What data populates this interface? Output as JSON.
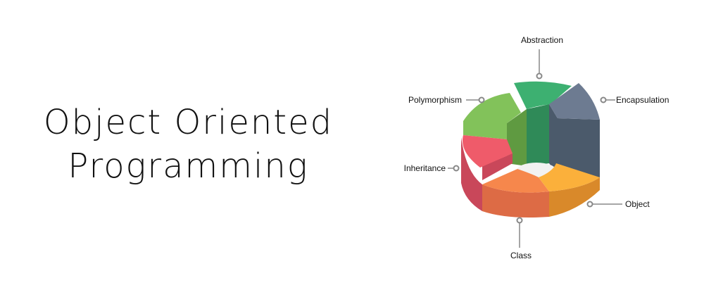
{
  "title": {
    "line1": "Object Oriented",
    "line2": "Programming"
  },
  "diagram": {
    "segments": [
      {
        "label": "Abstraction",
        "color": "#3db071",
        "side": "#2f8a58"
      },
      {
        "label": "Encapsulation",
        "color": "#6d7b91",
        "side": "#4b5a6b"
      },
      {
        "label": "Object",
        "color": "#fbb03b",
        "side": "#d9892a"
      },
      {
        "label": "Class",
        "color": "#f6874c",
        "side": "#dd6b45"
      },
      {
        "label": "Inheritance",
        "color": "#ef5b6a",
        "side": "#c9475a"
      },
      {
        "label": "Polymorphism",
        "color": "#82c25a",
        "side": "#5f9a41"
      }
    ],
    "connector_color": "#888888"
  }
}
